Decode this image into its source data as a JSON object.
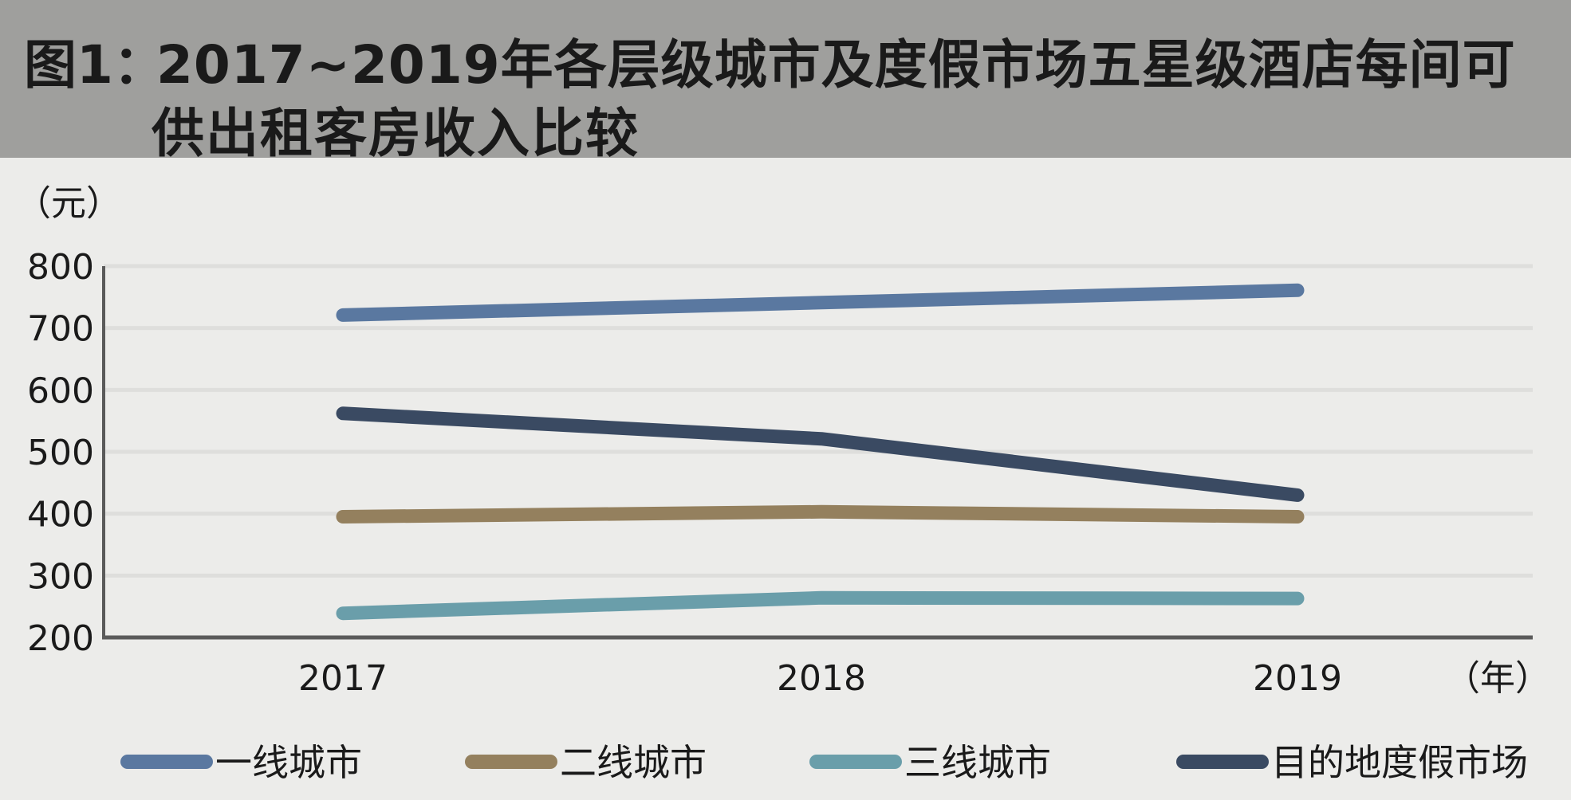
{
  "title": {
    "prefix": "图1：",
    "line1": "2017~2019年各层级城市及度假市场五星级酒店每间可",
    "line2": "供出租客房收入比较"
  },
  "chart_data": {
    "type": "line",
    "x": [
      "2017",
      "2018",
      "2019"
    ],
    "ylabel": "（元）",
    "xlabel": "（年）",
    "ylim": [
      200,
      800
    ],
    "yticks": [
      800,
      700,
      600,
      500,
      400,
      300,
      200
    ],
    "grid": true,
    "legend_position": "bottom",
    "series": [
      {
        "name": "一线城市",
        "values": [
          721,
          741,
          761
        ],
        "color": "#5a78a0"
      },
      {
        "name": "二线城市",
        "values": [
          395,
          403,
          395
        ],
        "color": "#94805e"
      },
      {
        "name": "三线城市",
        "values": [
          239,
          264,
          263
        ],
        "color": "#6a9eaa"
      },
      {
        "name": "目的地度假市场",
        "values": [
          562,
          521,
          430
        ],
        "color": "#3a4a62"
      }
    ]
  }
}
